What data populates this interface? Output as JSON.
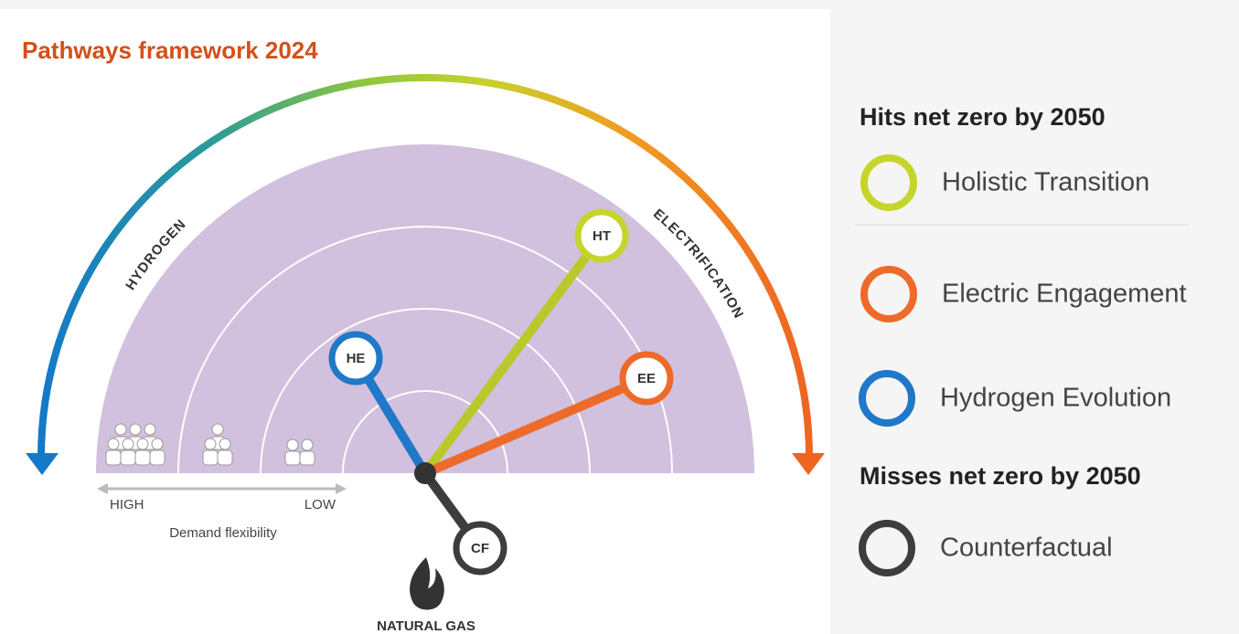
{
  "title": "Pathways framework 2024",
  "arc_labels": {
    "left": "HYDROGEN",
    "right": "ELECTRIFICATION"
  },
  "demand_flexibility": {
    "high": "HIGH",
    "low": "LOW",
    "label": "Demand flexibility"
  },
  "base_label": "NATURAL GAS",
  "markers": [
    {
      "code": "HT"
    },
    {
      "code": "EE"
    },
    {
      "code": "HE"
    },
    {
      "code": "CF"
    }
  ],
  "legend": [
    {
      "heading": "Hits net zero by 2050",
      "items": [
        {
          "label": "Holistic Transition"
        },
        {
          "label": "Electric Engagement"
        },
        {
          "label": "Hydrogen Evolution"
        }
      ]
    },
    {
      "heading": "Misses net zero by 2050",
      "items": [
        {
          "label": "Counterfactual"
        }
      ]
    }
  ]
}
